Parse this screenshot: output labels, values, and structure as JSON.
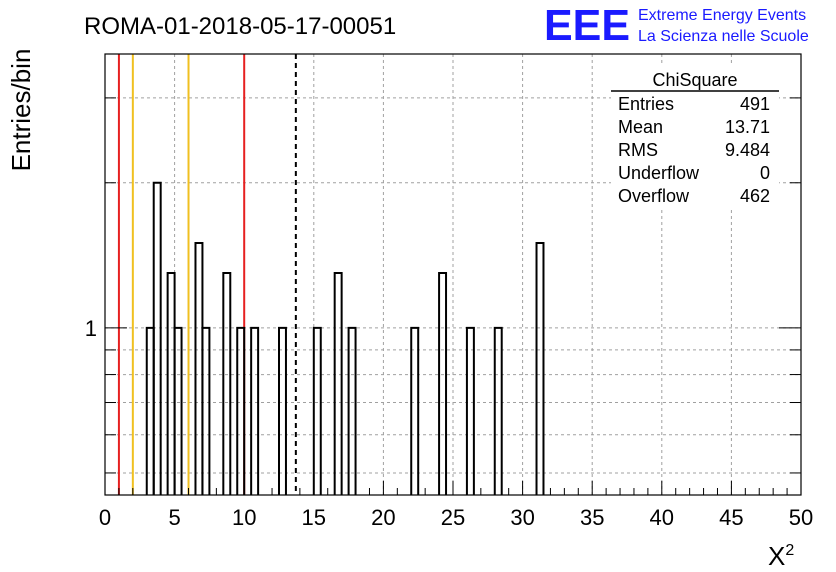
{
  "chart_data": {
    "type": "bar",
    "title": "ROMA-01-2018-05-17-00051",
    "xlabel": "X",
    "xlabel_sup": "2",
    "ylabel": "Entries/bin",
    "xlim": [
      0,
      50
    ],
    "ylim": [
      0.45,
      3.7
    ],
    "y_scale": "log",
    "grid": true,
    "bin_width": 0.5,
    "x_ticks": [
      "0",
      "5",
      "10",
      "15",
      "20",
      "25",
      "30",
      "35",
      "40",
      "45",
      "50"
    ],
    "y_tick_labels": [
      {
        "value": 1,
        "label": "1"
      }
    ],
    "bins": [
      {
        "x": 3.0,
        "value": 1
      },
      {
        "x": 3.5,
        "value": 2
      },
      {
        "x": 4.5,
        "value": 1.3
      },
      {
        "x": 5.0,
        "value": 1
      },
      {
        "x": 6.5,
        "value": 1.5
      },
      {
        "x": 7.0,
        "value": 1
      },
      {
        "x": 8.5,
        "value": 1.3
      },
      {
        "x": 9.5,
        "value": 1
      },
      {
        "x": 10.5,
        "value": 1
      },
      {
        "x": 12.5,
        "value": 1
      },
      {
        "x": 15.0,
        "value": 1
      },
      {
        "x": 16.5,
        "value": 1.3
      },
      {
        "x": 17.5,
        "value": 1
      },
      {
        "x": 22.0,
        "value": 1
      },
      {
        "x": 24.0,
        "value": 1.3
      },
      {
        "x": 26.0,
        "value": 1
      },
      {
        "x": 28.0,
        "value": 1
      },
      {
        "x": 31.0,
        "value": 1.5
      }
    ],
    "vlines": [
      {
        "x": 1.0,
        "color": "#e62020",
        "style": "solid"
      },
      {
        "x": 2.0,
        "color": "#f0c020",
        "style": "solid"
      },
      {
        "x": 6.0,
        "color": "#f0c020",
        "style": "solid"
      },
      {
        "x": 10.0,
        "color": "#e62020",
        "style": "solid"
      },
      {
        "x": 13.71,
        "color": "#000000",
        "style": "dashed"
      }
    ],
    "stats_box": {
      "title": "ChiSquare",
      "rows": [
        {
          "label": "Entries",
          "value": "491"
        },
        {
          "label": "Mean",
          "value": "13.71"
        },
        {
          "label": "RMS",
          "value": "9.484"
        },
        {
          "label": "Underflow",
          "value": "0"
        },
        {
          "label": "Overflow",
          "value": "462"
        }
      ]
    }
  },
  "logo": {
    "letters": "EEE",
    "line1": "Extreme Energy Events",
    "line2": "La Scienza nelle Scuole"
  },
  "colors": {
    "histogram": "#000000",
    "grid": "#a0a0a0",
    "logo": "#1a1aff"
  }
}
